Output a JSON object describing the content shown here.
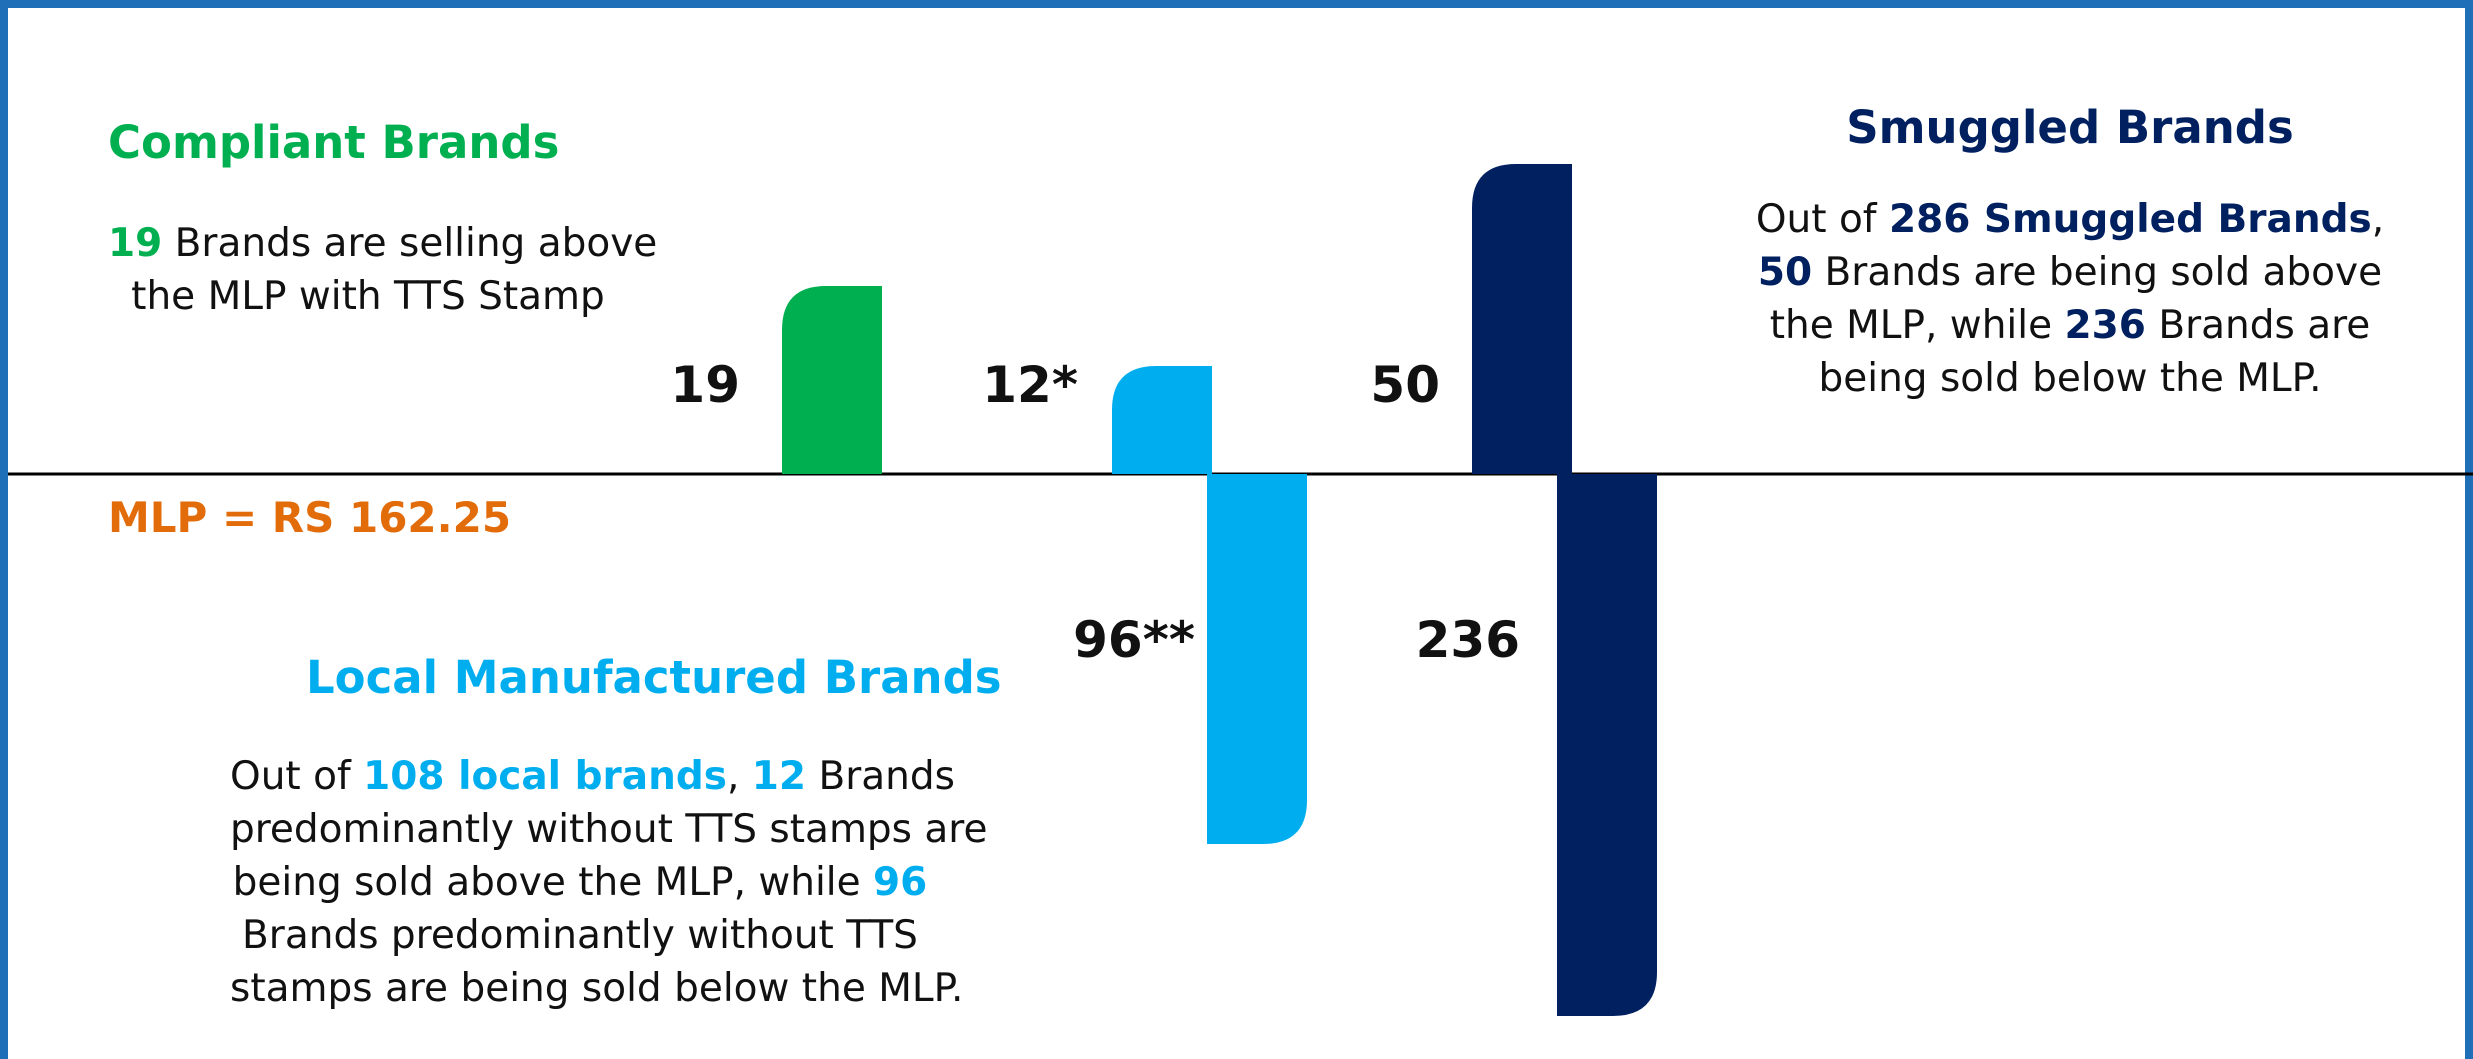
{
  "colors": {
    "compliant": "#00b050",
    "local": "#00aeef",
    "smuggled": "#002060",
    "mlp": "#e36c0a",
    "frame": "#1f6fb8",
    "axis": "#000000"
  },
  "compliant": {
    "title": "Compliant Brands",
    "line1_num": "19",
    "line1_rest": " Brands are selling above",
    "line2": "the MLP with TTS Stamp"
  },
  "local": {
    "title": "Local Manufactured Brands",
    "p1": "Out of ",
    "total": "108 local brands",
    "p2": ", ",
    "above_num": "12",
    "p3": " Brands",
    "line2": "predominantly without TTS stamps are",
    "line3_pre": "being sold above the MLP, while ",
    "below_num": "96",
    "line4": "Brands predominantly without TTS",
    "line5": "stamps are being sold below the MLP."
  },
  "smuggled": {
    "title": "Smuggled Brands",
    "p1": "Out of ",
    "total": "286 Smuggled Brands",
    "p2": ",",
    "above_num": "50",
    "line2_rest": " Brands are being sold above",
    "line3_pre": "the MLP, while ",
    "below_num": "236",
    "line3_rest": " Brands are",
    "line4": "being sold below the MLP."
  },
  "mlp_label": "MLP = RS 162.25",
  "chart_data": {
    "type": "bar",
    "baseline_label": "MLP = RS 162.25",
    "bars": [
      {
        "name": "compliant-above",
        "value": 19,
        "label": "19",
        "color": "#00b050"
      },
      {
        "name": "local-above",
        "value": 12,
        "label": "12*",
        "color": "#00aeef"
      },
      {
        "name": "local-below",
        "value": -96,
        "label": "96**",
        "color": "#00aeef"
      },
      {
        "name": "smuggled-above",
        "value": 50,
        "label": "50",
        "color": "#002060"
      },
      {
        "name": "smuggled-below",
        "value": -236,
        "label": "236",
        "color": "#002060"
      }
    ]
  }
}
